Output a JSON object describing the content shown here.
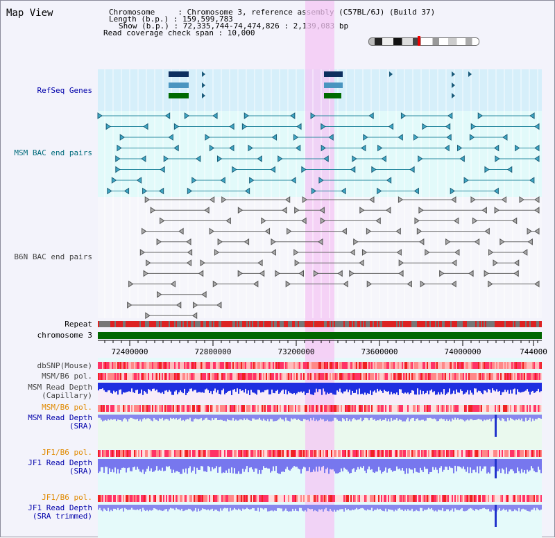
{
  "panel_title": "Map View",
  "info": {
    "line1": "Chromosome     : Chromosome 3, reference assembly (C57BL/6J) (Build 37)",
    "line2": "Length (b.p.) : 159,599,783",
    "line3": "Show (b.p.) : 72,335,744-74,474,826 : 2,139,083 bp",
    "line4": "Read coverage check span : 10,000"
  },
  "tracks": {
    "refseq": "RefSeq Genes",
    "msm_bac": "MSM BAC end pairs",
    "b6n_bac": "B6N BAC end pairs",
    "repeat": "Repeat",
    "chromosome": "chromosome 3",
    "dbsnp": "dbSNP(Mouse)",
    "msm_b6_pol": "MSM/B6 pol.",
    "msm_depth_cap": "MSM Read Depth\n(Capillary)",
    "msm_b6_pol2": "MSM/B6 pol.",
    "msm_depth_sra": "MSM Read Depth\n(SRA)",
    "jf1_b6_pol": "JF1/B6 pol.",
    "jf1_depth_sra": "JF1 Read Depth\n(SRA)",
    "jf1_b6_pol2": "JF1/B6 pol.",
    "jf1_depth_trim": "JF1 Read Depth\n(SRA trimmed)"
  },
  "axis": {
    "ticks": [
      "72400000",
      "72800000",
      "73200000",
      "73600000",
      "74000000",
      "744000"
    ]
  },
  "colors": {
    "refseq_label": "#0000aa",
    "msm_label": "#006b7b",
    "b6n_label": "#444444",
    "orange_label": "#e08a00",
    "blue_label": "#0000aa",
    "highlight": "#f4c6f4",
    "chromosome": "#006600",
    "repeat": "#dd2222"
  }
}
